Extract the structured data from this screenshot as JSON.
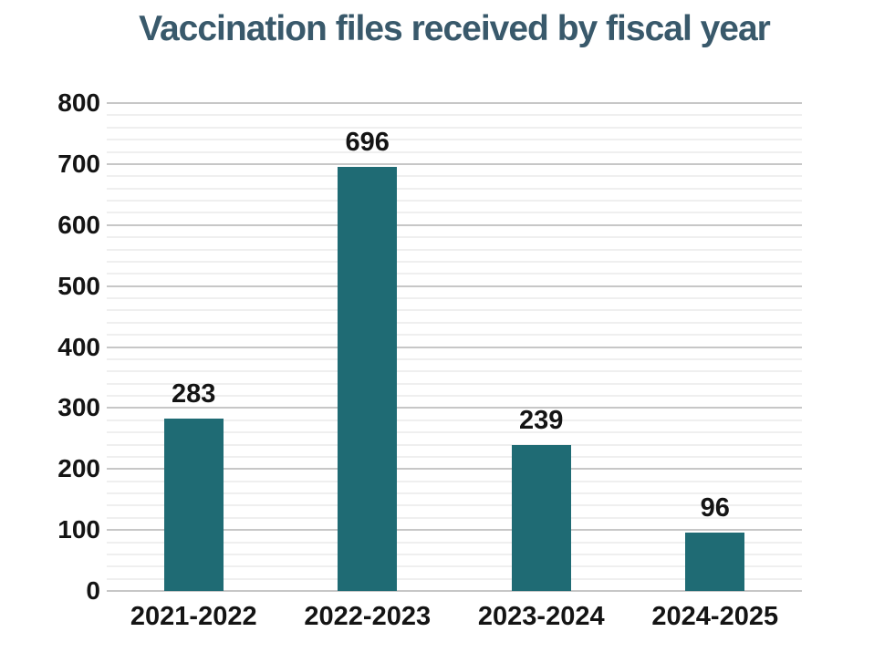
{
  "chart_data": {
    "type": "bar",
    "title": "Vaccination files received by fiscal year",
    "categories": [
      "2021-2022",
      "2022-2023",
      "2023-2024",
      "2024-2025"
    ],
    "values": [
      283,
      696,
      239,
      96
    ],
    "xlabel": "",
    "ylabel": "",
    "ylim": [
      0,
      800
    ],
    "y_major_step": 100,
    "y_minor_step": 20,
    "grid": "horizontal-only",
    "legend": "none",
    "value_labels_shown": true,
    "colors": {
      "bar": "#1f6b74",
      "title": "#39596b",
      "tick_text": "#141414",
      "major_grid": "#c7c7c7",
      "minor_grid": "#efefef",
      "background": "#ffffff"
    }
  }
}
